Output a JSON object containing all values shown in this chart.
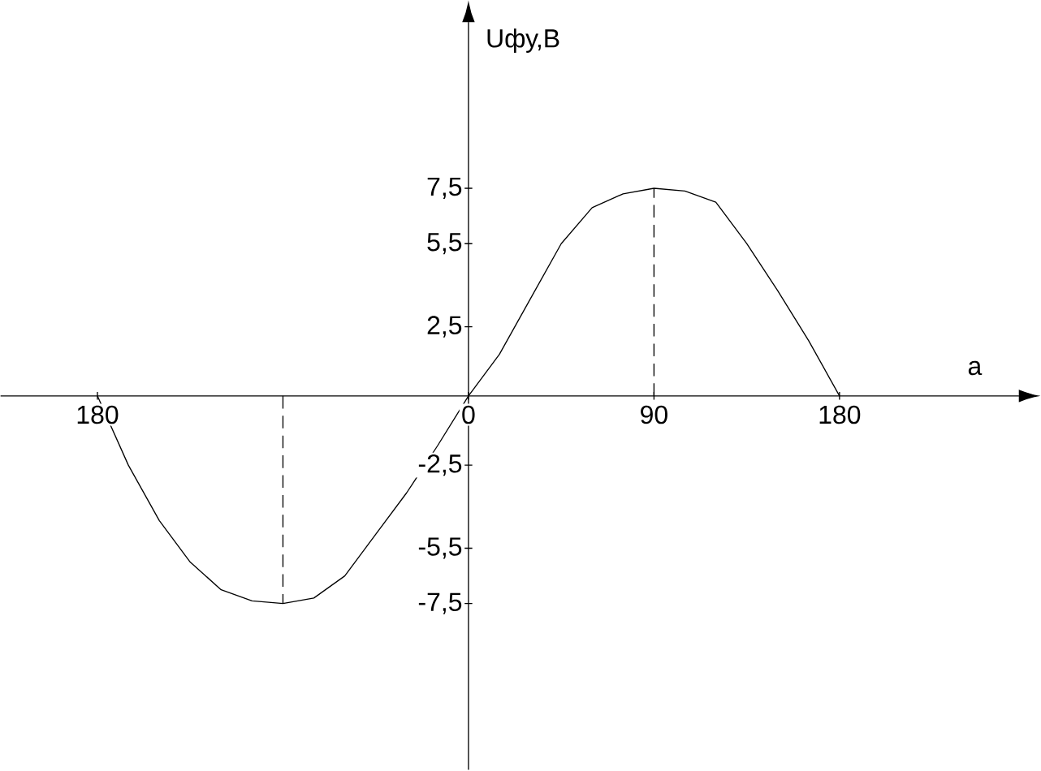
{
  "chart_data": {
    "type": "line",
    "xlabel": "a",
    "ylabel": "Uфу,В",
    "xlim": [
      -227,
      267
    ],
    "ylim": [
      -13.5,
      13.5
    ],
    "xticks": [
      {
        "value": -180,
        "label": "180"
      },
      0,
      90,
      180
    ],
    "yticks": [
      {
        "value": -7.5,
        "label": "-7,5"
      },
      {
        "value": -5.5,
        "label": "-5,5"
      },
      {
        "value": -2.5,
        "label": "-2,5"
      },
      {
        "value": 2.5,
        "label": "2,5"
      },
      {
        "value": 5.5,
        "label": "5,5"
      },
      {
        "value": 7.5,
        "label": "7,5"
      }
    ],
    "marker": "none",
    "grid": false,
    "series": [
      {
        "color": "#000000",
        "line_style": "solid",
        "x": [
          -180,
          -165,
          -150,
          -135,
          -120,
          -105,
          -90,
          -75,
          -60,
          -45,
          -30,
          -15,
          0,
          15,
          30,
          45,
          60,
          75,
          90,
          105,
          120,
          135,
          150,
          165,
          180
        ],
        "values": [
          0,
          -2.5,
          -4.5,
          -6.0,
          -7.0,
          -7.4,
          -7.5,
          -7.3,
          -6.5,
          -5.0,
          -3.5,
          -1.8,
          0,
          1.5,
          3.5,
          5.5,
          6.8,
          7.3,
          7.5,
          7.4,
          7.0,
          5.5,
          3.8,
          2.0,
          0
        ]
      },
      {
        "color": "#000000",
        "line_style": "dashed",
        "x": [
          90,
          90
        ],
        "values": [
          0,
          7.5
        ]
      },
      {
        "color": "#000000",
        "line_style": "dashed",
        "x": [
          -90,
          -90
        ],
        "values": [
          0,
          -7.5
        ]
      }
    ]
  }
}
